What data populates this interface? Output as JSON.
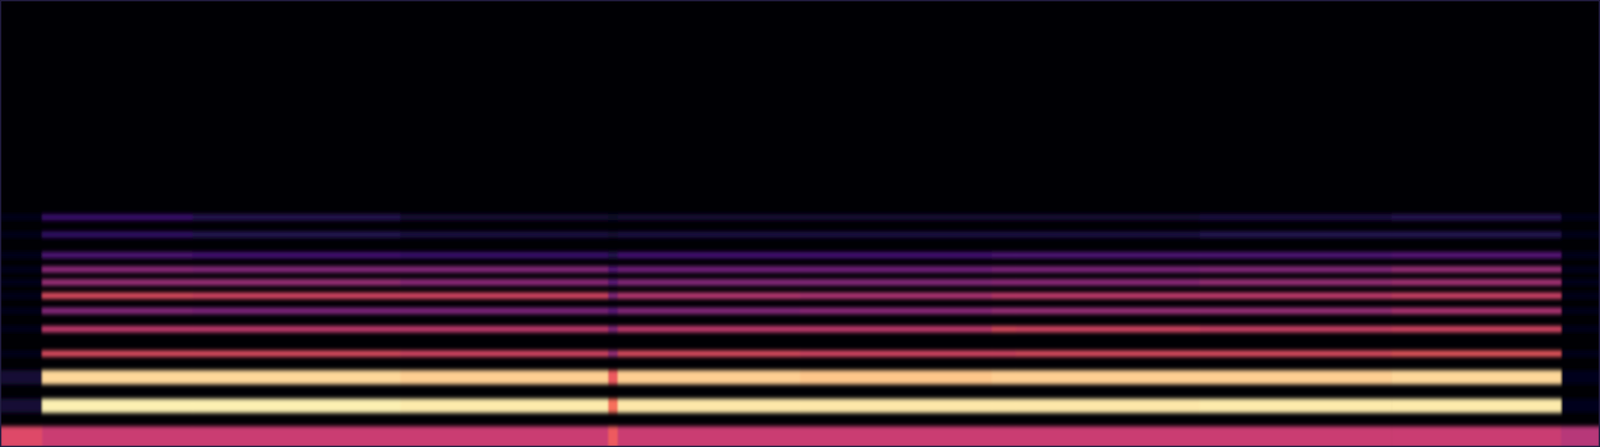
{
  "chart_data": {
    "type": "spectrogram",
    "tick_labels": false,
    "xlim": [
      0,
      100
    ],
    "ylim": [
      0,
      100
    ],
    "zlim": [
      0,
      100
    ],
    "time_bins": [
      0,
      2.6,
      12,
      25,
      38,
      38.6,
      50,
      62,
      63.5,
      75,
      87,
      97.6,
      100
    ],
    "series": [
      {
        "frequency": 2,
        "values": [
          60,
          55,
          55,
          55,
          65,
          55,
          55,
          55,
          55,
          55,
          55,
          50
        ]
      },
      {
        "frequency": 9.1,
        "values": [
          10,
          97,
          97,
          96,
          70,
          95,
          95,
          95,
          95,
          96,
          96,
          5
        ]
      },
      {
        "frequency": 15.5,
        "values": [
          10,
          92,
          92,
          90,
          65,
          90,
          88,
          90,
          90,
          90,
          92,
          5
        ]
      },
      {
        "frequency": 20.8,
        "values": [
          5,
          62,
          62,
          60,
          45,
          62,
          60,
          60,
          62,
          62,
          65,
          5
        ]
      },
      {
        "frequency": 26.3,
        "values": [
          5,
          55,
          55,
          55,
          40,
          55,
          55,
          62,
          60,
          58,
          60,
          5
        ]
      },
      {
        "frequency": 30.4,
        "values": [
          5,
          40,
          38,
          38,
          30,
          40,
          42,
          45,
          45,
          45,
          50,
          5
        ]
      },
      {
        "frequency": 33.8,
        "values": [
          5,
          62,
          60,
          60,
          40,
          52,
          50,
          55,
          55,
          55,
          58,
          5
        ]
      },
      {
        "frequency": 36.8,
        "values": [
          5,
          45,
          45,
          42,
          30,
          40,
          40,
          42,
          42,
          45,
          48,
          5
        ]
      },
      {
        "frequency": 39.7,
        "values": [
          5,
          42,
          40,
          40,
          28,
          35,
          35,
          38,
          38,
          40,
          45,
          5
        ]
      },
      {
        "frequency": 42.9,
        "values": [
          5,
          25,
          22,
          20,
          15,
          22,
          22,
          25,
          25,
          25,
          28,
          5
        ]
      },
      {
        "frequency": 47.5,
        "values": [
          5,
          18,
          15,
          12,
          10,
          12,
          12,
          12,
          12,
          15,
          15,
          5
        ]
      },
      {
        "frequency": 51.4,
        "values": [
          5,
          20,
          15,
          10,
          8,
          10,
          10,
          10,
          10,
          12,
          15,
          5
        ]
      }
    ]
  }
}
